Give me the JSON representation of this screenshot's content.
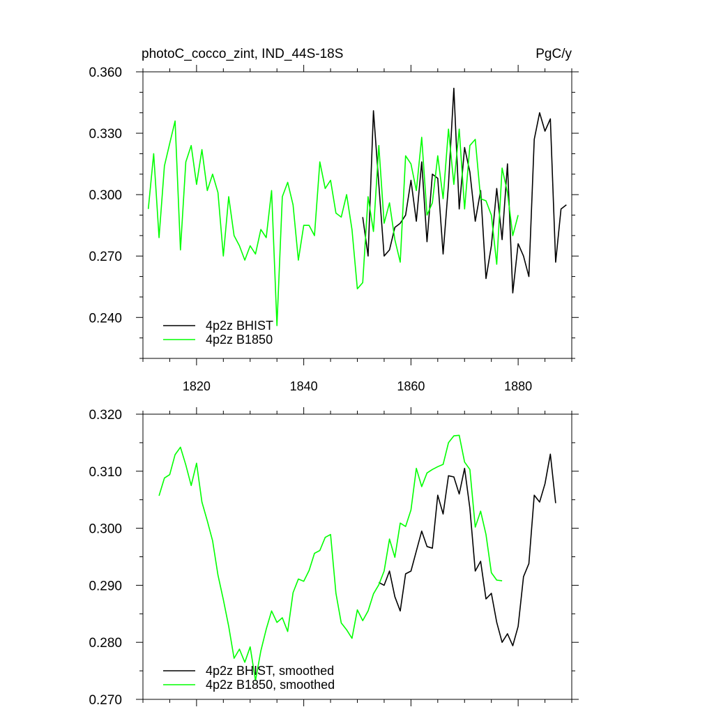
{
  "figure": {
    "title_left": "photoC_cocco_zint, IND_44S-18S",
    "title_right": "PgC/y"
  },
  "chart_data": [
    {
      "type": "line",
      "xlim": [
        1810,
        1890
      ],
      "ylim": [
        0.22,
        0.36
      ],
      "xticks": [
        1820,
        1840,
        1860,
        1880
      ],
      "yticks": [
        0.24,
        0.27,
        0.3,
        0.33,
        0.36
      ],
      "ytick_labels": [
        "0.240",
        "0.270",
        "0.300",
        "0.330",
        "0.360"
      ],
      "legend_position": "bottom-left",
      "series": [
        {
          "name": "4p2z BHIST",
          "color": "#000000",
          "x": [
            1851,
            1852,
            1853,
            1854,
            1855,
            1856,
            1857,
            1858,
            1859,
            1860,
            1861,
            1862,
            1863,
            1864,
            1865,
            1866,
            1867,
            1868,
            1869,
            1870,
            1871,
            1872,
            1873,
            1874,
            1875,
            1876,
            1877,
            1878,
            1879,
            1880,
            1881,
            1882,
            1883,
            1884,
            1885,
            1886,
            1887,
            1888,
            1889
          ],
          "y": [
            0.289,
            0.27,
            0.341,
            0.305,
            0.27,
            0.273,
            0.284,
            0.286,
            0.29,
            0.307,
            0.287,
            0.316,
            0.277,
            0.31,
            0.308,
            0.271,
            0.305,
            0.352,
            0.293,
            0.323,
            0.311,
            0.287,
            0.302,
            0.259,
            0.275,
            0.303,
            0.278,
            0.315,
            0.252,
            0.276,
            0.27,
            0.26,
            0.327,
            0.34,
            0.331,
            0.337,
            0.267,
            0.293,
            0.295
          ]
        },
        {
          "name": "4p2z B1850",
          "color": "#00ff00",
          "x": [
            1811,
            1812,
            1813,
            1814,
            1815,
            1816,
            1817,
            1818,
            1819,
            1820,
            1821,
            1822,
            1823,
            1824,
            1825,
            1826,
            1827,
            1828,
            1829,
            1830,
            1831,
            1832,
            1833,
            1834,
            1835,
            1836,
            1837,
            1838,
            1839,
            1840,
            1841,
            1842,
            1843,
            1844,
            1845,
            1846,
            1847,
            1848,
            1849,
            1850,
            1851,
            1852,
            1853,
            1854,
            1855,
            1856,
            1857,
            1858,
            1859,
            1860,
            1861,
            1862,
            1863,
            1864,
            1865,
            1866,
            1867,
            1868,
            1869,
            1870,
            1871,
            1872,
            1873,
            1874,
            1875,
            1876,
            1877,
            1878,
            1879,
            1880
          ],
          "y": [
            0.293,
            0.32,
            0.279,
            0.314,
            0.325,
            0.336,
            0.273,
            0.316,
            0.324,
            0.305,
            0.322,
            0.302,
            0.31,
            0.301,
            0.27,
            0.299,
            0.28,
            0.275,
            0.268,
            0.275,
            0.271,
            0.283,
            0.279,
            0.302,
            0.236,
            0.299,
            0.306,
            0.295,
            0.268,
            0.285,
            0.285,
            0.28,
            0.316,
            0.303,
            0.307,
            0.291,
            0.289,
            0.3,
            0.283,
            0.254,
            0.257,
            0.299,
            0.282,
            0.324,
            0.286,
            0.296,
            0.278,
            0.267,
            0.319,
            0.315,
            0.302,
            0.328,
            0.29,
            0.296,
            0.319,
            0.298,
            0.332,
            0.305,
            0.332,
            0.293,
            0.324,
            0.327,
            0.298,
            0.297,
            0.29,
            0.266,
            0.313,
            0.301,
            0.28,
            0.29
          ]
        }
      ]
    },
    {
      "type": "line",
      "xlim": [
        1810,
        1890
      ],
      "ylim": [
        0.27,
        0.32
      ],
      "xticks": [
        1820,
        1840,
        1860,
        1880
      ],
      "yticks": [
        0.27,
        0.28,
        0.29,
        0.3,
        0.31,
        0.32
      ],
      "ytick_labels": [
        "0.270",
        "0.280",
        "0.290",
        "0.300",
        "0.310",
        "0.320"
      ],
      "legend_position": "bottom-left",
      "series": [
        {
          "name": "4p2z BHIST, smoothed",
          "color": "#000000",
          "x": [
            1854,
            1855,
            1856,
            1857,
            1858,
            1859,
            1860,
            1861,
            1862,
            1863,
            1864,
            1865,
            1866,
            1867,
            1868,
            1869,
            1870,
            1871,
            1872,
            1873,
            1874,
            1875,
            1876,
            1877,
            1878,
            1879,
            1880,
            1881,
            1882,
            1883,
            1884,
            1885,
            1886,
            1887
          ],
          "y": [
            0.2905,
            0.29,
            0.2925,
            0.288,
            0.2855,
            0.292,
            0.2925,
            0.296,
            0.2995,
            0.2968,
            0.2965,
            0.3058,
            0.3025,
            0.3092,
            0.309,
            0.306,
            0.3105,
            0.3035,
            0.2925,
            0.2942,
            0.2876,
            0.2886,
            0.2835,
            0.28,
            0.2815,
            0.2794,
            0.2828,
            0.2915,
            0.2938,
            0.3058,
            0.3046,
            0.3078,
            0.313,
            0.3044
          ]
        },
        {
          "name": "4p2z B1850, smoothed",
          "color": "#00ff00",
          "x": [
            1813,
            1814,
            1815,
            1816,
            1817,
            1818,
            1819,
            1820,
            1821,
            1822,
            1823,
            1824,
            1825,
            1826,
            1827,
            1828,
            1829,
            1830,
            1831,
            1832,
            1833,
            1834,
            1835,
            1836,
            1837,
            1838,
            1839,
            1840,
            1841,
            1842,
            1843,
            1844,
            1845,
            1846,
            1847,
            1848,
            1849,
            1850,
            1851,
            1852,
            1853,
            1854,
            1855,
            1856,
            1857,
            1858,
            1859,
            1860,
            1861,
            1862,
            1863,
            1864,
            1865,
            1866,
            1867,
            1868,
            1869,
            1870,
            1871,
            1872,
            1873,
            1874,
            1875,
            1876,
            1877
          ],
          "y": [
            0.3057,
            0.3088,
            0.3094,
            0.3129,
            0.3142,
            0.3111,
            0.3075,
            0.3114,
            0.3046,
            0.3013,
            0.2978,
            0.2918,
            0.2875,
            0.2828,
            0.2772,
            0.2788,
            0.2765,
            0.2792,
            0.2733,
            0.2785,
            0.2823,
            0.2855,
            0.2835,
            0.2843,
            0.2819,
            0.2887,
            0.2911,
            0.2907,
            0.2926,
            0.2956,
            0.2961,
            0.2984,
            0.2989,
            0.2886,
            0.2834,
            0.2822,
            0.2807,
            0.2857,
            0.2838,
            0.2855,
            0.2885,
            0.2901,
            0.2925,
            0.2981,
            0.2949,
            0.3009,
            0.3003,
            0.3032,
            0.3105,
            0.3073,
            0.3097,
            0.3103,
            0.3108,
            0.3112,
            0.315,
            0.3162,
            0.3163,
            0.3116,
            0.3103,
            0.3002,
            0.303,
            0.2989,
            0.2922,
            0.2909,
            0.2908
          ]
        }
      ]
    }
  ]
}
